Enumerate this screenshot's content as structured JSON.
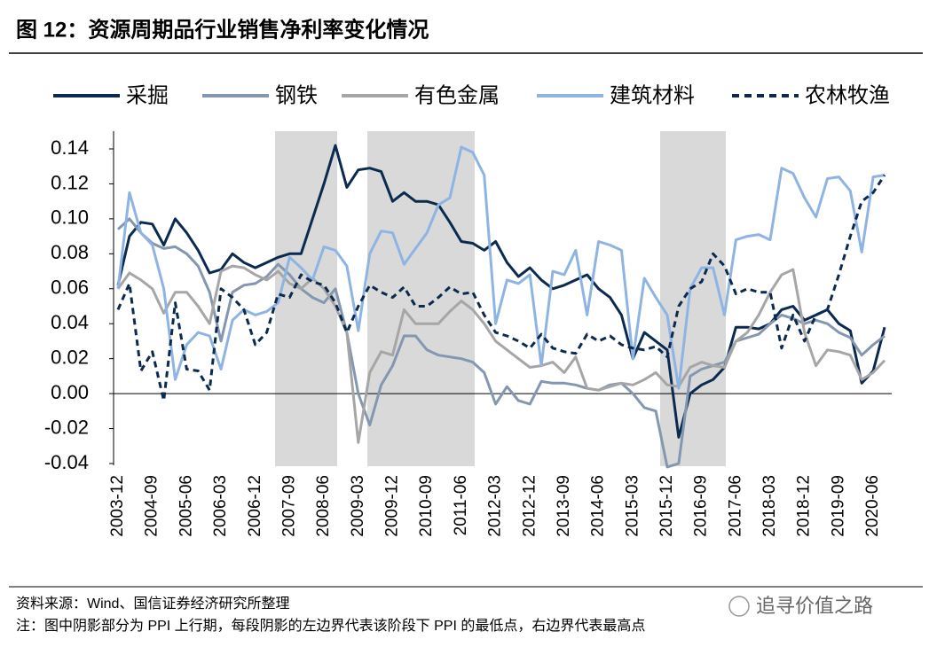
{
  "title": "图 12：资源周期品行业销售净利率变化情况",
  "chart_data": {
    "type": "line",
    "categories": [
      "2003-12",
      null,
      null,
      "2004-09",
      null,
      null,
      "2005-06",
      null,
      null,
      "2006-03",
      null,
      null,
      "2006-12",
      null,
      null,
      "2007-09",
      null,
      null,
      "2008-06",
      null,
      null,
      "2009-03",
      null,
      null,
      "2009-12",
      null,
      null,
      "2010-09",
      null,
      null,
      "2011-06",
      null,
      null,
      "2012-03",
      null,
      null,
      "2012-12",
      null,
      null,
      "2013-09",
      null,
      null,
      "2014-06",
      null,
      null,
      "2015-03",
      null,
      null,
      "2015-12",
      null,
      null,
      "2016-09",
      null,
      null,
      "2017-06",
      null,
      null,
      "2018-03",
      null,
      null,
      "2018-12",
      null,
      null,
      "2019-09",
      null,
      null,
      "2020-06",
      null
    ],
    "series": [
      {
        "name": "采掘",
        "color": "#0b2a4f",
        "style": "solid",
        "values": [
          0.062,
          0.09,
          0.098,
          0.097,
          0.085,
          0.1,
          0.092,
          0.082,
          0.069,
          0.071,
          0.08,
          0.075,
          0.072,
          0.075,
          0.078,
          0.08,
          0.08,
          0.1,
          0.12,
          0.142,
          0.118,
          0.128,
          0.129,
          0.127,
          0.11,
          0.115,
          0.11,
          0.11,
          0.108,
          0.098,
          0.087,
          0.086,
          0.082,
          0.087,
          0.075,
          0.067,
          0.072,
          0.065,
          0.06,
          0.062,
          0.065,
          0.068,
          0.06,
          0.055,
          0.045,
          0.02,
          0.035,
          0.03,
          0.025,
          -0.025,
          0.0,
          0.005,
          0.008,
          0.015,
          0.038,
          0.038,
          0.037,
          0.04,
          0.048,
          0.05,
          0.042,
          0.045,
          0.048,
          0.04,
          0.036,
          0.006,
          0.013,
          0.038
        ]
      },
      {
        "name": "钢铁",
        "color": "#8497b0",
        "style": "solid",
        "values": [
          0.094,
          0.1,
          0.092,
          0.086,
          0.083,
          0.084,
          0.08,
          0.073,
          0.058,
          0.03,
          0.058,
          0.062,
          0.063,
          0.067,
          0.074,
          0.068,
          0.06,
          0.055,
          0.052,
          0.06,
          0.035,
          0.0,
          -0.018,
          0.005,
          0.016,
          0.033,
          0.033,
          0.025,
          0.022,
          0.021,
          0.02,
          0.018,
          0.012,
          -0.006,
          0.004,
          -0.004,
          -0.006,
          0.007,
          0.006,
          0.006,
          0.005,
          0.003,
          0.002,
          0.005,
          0.006,
          0.0,
          -0.008,
          -0.01,
          -0.042,
          -0.04,
          0.01,
          0.014,
          0.016,
          0.018,
          0.03,
          0.032,
          0.034,
          0.04,
          0.045,
          0.043,
          0.04,
          0.042,
          0.04,
          0.035,
          0.032,
          0.022,
          0.028,
          0.033
        ]
      },
      {
        "name": "有色金属",
        "color": "#a6a6a6",
        "style": "solid",
        "values": [
          0.06,
          0.069,
          0.065,
          0.06,
          0.046,
          0.058,
          0.058,
          0.05,
          0.04,
          0.07,
          0.073,
          0.072,
          0.068,
          0.065,
          0.07,
          0.063,
          0.06,
          0.066,
          0.06,
          0.05,
          0.035,
          -0.028,
          0.012,
          0.024,
          0.022,
          0.048,
          0.04,
          0.04,
          0.04,
          0.047,
          0.053,
          0.048,
          0.04,
          0.03,
          0.025,
          0.02,
          0.015,
          0.016,
          0.018,
          0.012,
          0.021,
          0.003,
          0.002,
          0.004,
          0.006,
          0.005,
          0.008,
          0.012,
          0.005,
          0.004,
          0.015,
          0.018,
          0.016,
          0.015,
          0.03,
          0.035,
          0.045,
          0.058,
          0.068,
          0.071,
          0.035,
          0.016,
          0.025,
          0.024,
          0.022,
          0.008,
          0.012,
          0.019
        ]
      },
      {
        "name": "建筑材料",
        "color": "#8eb4e3",
        "style": "solid",
        "values": [
          0.06,
          0.115,
          0.092,
          0.085,
          0.06,
          0.008,
          0.028,
          0.035,
          0.033,
          0.014,
          0.042,
          0.048,
          0.045,
          0.047,
          0.052,
          0.078,
          0.072,
          0.065,
          0.084,
          0.082,
          0.073,
          0.036,
          0.08,
          0.093,
          0.092,
          0.074,
          0.083,
          0.092,
          0.108,
          0.112,
          0.141,
          0.138,
          0.125,
          0.04,
          0.065,
          0.063,
          0.068,
          0.016,
          0.07,
          0.068,
          0.082,
          0.045,
          0.087,
          0.085,
          0.082,
          0.02,
          0.066,
          0.055,
          0.045,
          0.003,
          0.06,
          0.072,
          0.072,
          0.045,
          0.088,
          0.09,
          0.091,
          0.088,
          0.129,
          0.126,
          0.112,
          0.101,
          0.123,
          0.124,
          0.116,
          0.081,
          0.124,
          0.125
        ]
      },
      {
        "name": "农林牧渔",
        "color": "#0b2a4f",
        "style": "dashed",
        "values": [
          0.048,
          0.063,
          0.013,
          0.024,
          -0.004,
          0.052,
          0.014,
          0.013,
          0.002,
          0.06,
          0.055,
          0.048,
          0.028,
          0.035,
          0.057,
          0.055,
          0.068,
          0.064,
          0.062,
          0.052,
          0.035,
          0.05,
          0.062,
          0.058,
          0.055,
          0.061,
          0.05,
          0.05,
          0.055,
          0.061,
          0.057,
          0.058,
          0.045,
          0.035,
          0.033,
          0.03,
          0.026,
          0.034,
          0.026,
          0.024,
          0.023,
          0.034,
          0.03,
          0.033,
          0.028,
          0.026,
          0.025,
          0.027,
          0.021,
          0.05,
          0.06,
          0.064,
          0.08,
          0.073,
          0.057,
          0.06,
          0.058,
          0.058,
          0.026,
          0.045,
          0.03,
          0.045,
          0.048,
          0.068,
          0.09,
          0.11,
          0.115,
          0.125
        ]
      }
    ],
    "ylim": [
      -0.04,
      0.14
    ],
    "yticks": [
      -0.04,
      -0.02,
      {
        "value": 0,
        "label": "0.00"
      },
      0.02,
      0.04,
      0.06,
      0.08,
      {
        "value": 0.1,
        "label": "0.10"
      },
      0.12,
      0.14
    ],
    "grid": false
  },
  "source": "资料来源：Wind、国信证券经济研究所整理",
  "note": "注：图中阴影部分为 PPI 上行期，每段阴影的左边界代表该阶段下 PPI 的最低点，右边界代表最高点",
  "watermark": "追寻价值之路"
}
